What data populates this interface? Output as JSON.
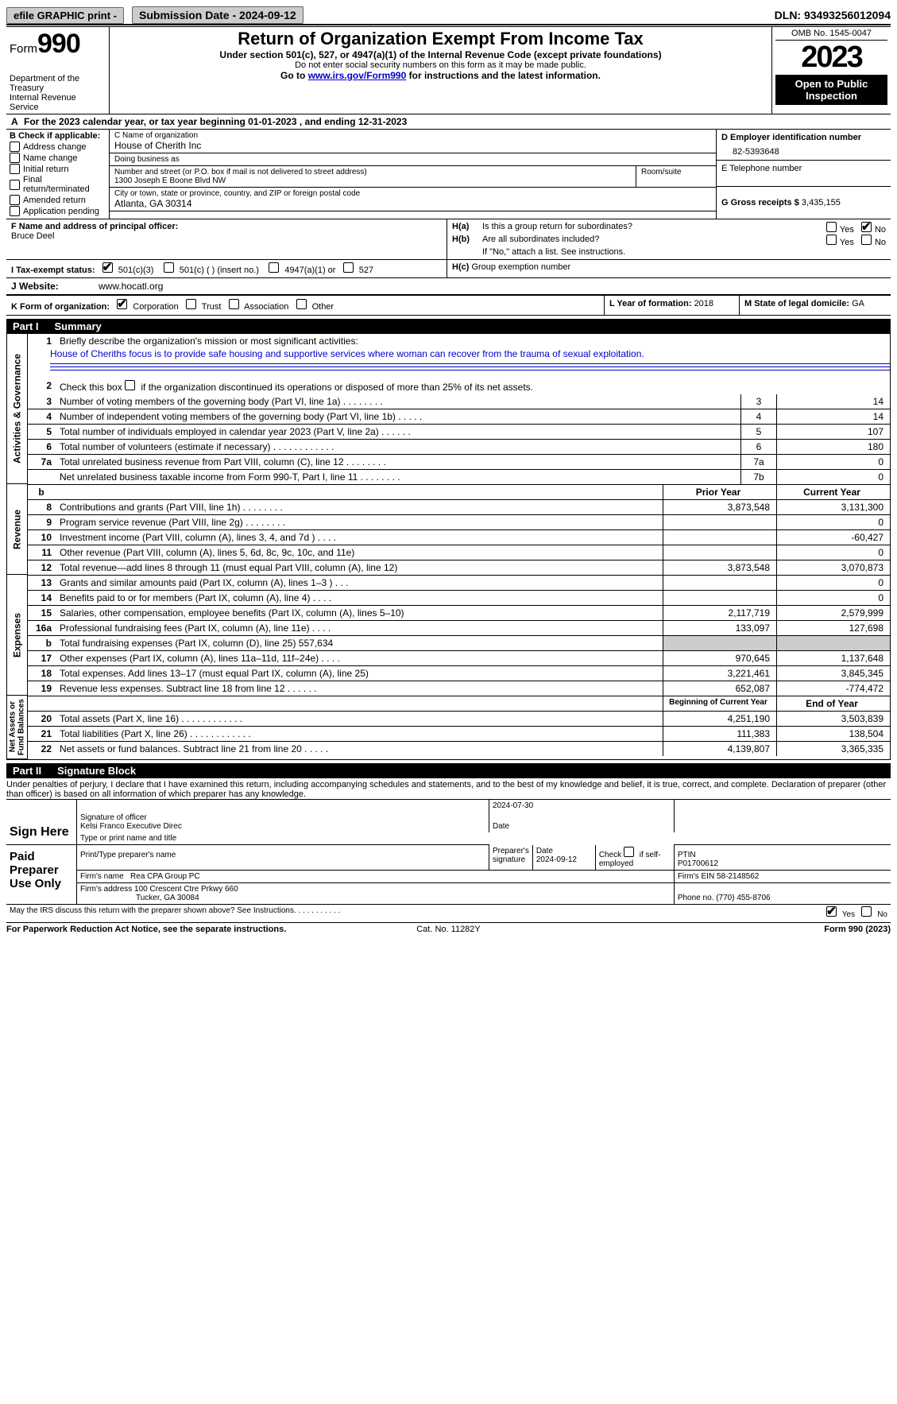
{
  "topbar": {
    "efile": "efile GRAPHIC print -",
    "submission": "Submission Date - 2024-09-12",
    "dln": "DLN: 93493256012094"
  },
  "header": {
    "form_prefix": "Form",
    "form_num": "990",
    "dept": "Department of the Treasury\nInternal Revenue Service",
    "title": "Return of Organization Exempt From Income Tax",
    "sub1": "Under section 501(c), 527, or 4947(a)(1) of the Internal Revenue Code (except private foundations)",
    "sub2": "Do not enter social security numbers on this form as it may be made public.",
    "sub3a": "Go to ",
    "sub3_link": "www.irs.gov/Form990",
    "sub3b": " for instructions and the latest information.",
    "omb": "OMB No. 1545-0047",
    "year": "2023",
    "openpub": "Open to Public Inspection"
  },
  "period": {
    "text_a": "For the 2023 calendar year, or tax year beginning ",
    "begin": "01-01-2023",
    "text_b": " , and ending ",
    "end": "12-31-2023",
    "prefix": "A"
  },
  "boxB": {
    "title": "B Check if applicable:",
    "items": [
      "Address change",
      "Name change",
      "Initial return",
      "Final return/terminated",
      "Amended return",
      "Application pending"
    ]
  },
  "boxC": {
    "name_label": "C Name of organization",
    "name": "House of Cherith Inc",
    "dba_label": "Doing business as",
    "dba": "",
    "addr_label": "Number and street (or P.O. box if mail is not delivered to street address)",
    "addr": "1300 Joseph E Boone Blvd NW",
    "room_label": "Room/suite",
    "city_label": "City or town, state or province, country, and ZIP or foreign postal code",
    "city": "Atlanta, GA   30314"
  },
  "boxDEFG": {
    "d_label": "D Employer identification number",
    "d_val": "82-5393648",
    "e_label": "E Telephone number",
    "e_val": "",
    "g_label": "G Gross receipts $ ",
    "g_val": "3,435,155"
  },
  "boxF": {
    "label": "F  Name and address of principal officer:",
    "val": "Bruce Deel"
  },
  "boxH": {
    "a_label": "H(a)",
    "a_text": "Is this a group return for subordinates?",
    "a_no": true,
    "b_label": "H(b)",
    "b_text": "Are all subordinates included?",
    "b_note": "If \"No,\" attach a list. See instructions.",
    "c_label": "H(c)",
    "c_text": "Group exemption number "
  },
  "boxI": {
    "label": "I   Tax-exempt status:",
    "c3": "501(c)(3)",
    "c": "501(c) (  ) (insert no.)",
    "a1": "4947(a)(1) or",
    "s527": "527"
  },
  "boxJ": {
    "label": "J   Website: ",
    "val": "www.hocatl.org"
  },
  "boxK": {
    "label": "K Form of organization:",
    "opts": [
      "Corporation",
      "Trust",
      "Association",
      "Other"
    ]
  },
  "boxL": {
    "label": "L Year of formation: ",
    "val": "2018"
  },
  "boxM": {
    "label": "M State of legal domicile: ",
    "val": "GA"
  },
  "part1": {
    "bar": "Part I",
    "title": "Summary",
    "line1_label": "Briefly describe the organization's mission or most significant activities:",
    "line1_val": "House of Cheriths focus is to provide safe housing and supportive services where woman can recover from the trauma of sexual exploitation.",
    "line2": "Check this box      if the organization discontinued its operations or disposed of more than 25% of its net assets.",
    "sidelabels": {
      "ag": "Activities & Governance",
      "rev": "Revenue",
      "exp": "Expenses",
      "net": "Net Assets or\nFund Balances"
    },
    "rows_gov": [
      {
        "n": "3",
        "d": "Number of voting members of the governing body (Part VI, line 1a)   .    .    .    .    .    .    .    .",
        "box": "3",
        "v": "14"
      },
      {
        "n": "4",
        "d": "Number of independent voting members of the governing body (Part VI, line 1b)   .    .    .    .    .",
        "box": "4",
        "v": "14"
      },
      {
        "n": "5",
        "d": "Total number of individuals employed in calendar year 2023 (Part V, line 2a)   .    .    .    .    .    .",
        "box": "5",
        "v": "107"
      },
      {
        "n": "6",
        "d": "Total number of volunteers (estimate if necessary)   .    .    .    .    .    .    .    .    .    .    .    .",
        "box": "6",
        "v": "180"
      },
      {
        "n": "7a",
        "d": "Total unrelated business revenue from Part VIII, column (C), line 12   .    .    .    .    .    .    .    .",
        "box": "7a",
        "v": "0"
      },
      {
        "n": "",
        "d": "Net unrelated business taxable income from Form 990-T, Part I, line 11   .    .    .    .    .    .    .    .",
        "box": "7b",
        "v": "0"
      }
    ],
    "colhdr_b": "b",
    "colhdr_prior": "Prior Year",
    "colhdr_curr": "Current Year",
    "rows_rev": [
      {
        "n": "8",
        "d": "Contributions and grants (Part VIII, line 1h)   .    .    .    .    .    .    .    .",
        "p": "3,873,548",
        "c": "3,131,300"
      },
      {
        "n": "9",
        "d": "Program service revenue (Part VIII, line 2g)   .    .    .    .    .    .    .    .",
        "p": "",
        "c": "0"
      },
      {
        "n": "10",
        "d": "Investment income (Part VIII, column (A), lines 3, 4, and 7d )   .    .    .    .",
        "p": "",
        "c": "-60,427"
      },
      {
        "n": "11",
        "d": "Other revenue (Part VIII, column (A), lines 5, 6d, 8c, 9c, 10c, and 11e)",
        "p": "",
        "c": "0"
      },
      {
        "n": "12",
        "d": "Total revenue—add lines 8 through 11 (must equal Part VIII, column (A), line 12)",
        "p": "3,873,548",
        "c": "3,070,873"
      }
    ],
    "rows_exp": [
      {
        "n": "13",
        "d": "Grants and similar amounts paid (Part IX, column (A), lines 1–3 )   .    .    .",
        "p": "",
        "c": "0"
      },
      {
        "n": "14",
        "d": "Benefits paid to or for members (Part IX, column (A), line 4)   .    .    .    .",
        "p": "",
        "c": "0"
      },
      {
        "n": "15",
        "d": "Salaries, other compensation, employee benefits (Part IX, column (A), lines 5–10)",
        "p": "2,117,719",
        "c": "2,579,999"
      },
      {
        "n": "16a",
        "d": "Professional fundraising fees (Part IX, column (A), line 11e)   .    .    .    .",
        "p": "133,097",
        "c": "127,698"
      },
      {
        "n": "b",
        "d": "Total fundraising expenses (Part IX, column (D), line 25) 557,634",
        "p": "SHADE",
        "c": "SHADE"
      },
      {
        "n": "17",
        "d": "Other expenses (Part IX, column (A), lines 11a–11d, 11f–24e)   .    .    .    .",
        "p": "970,645",
        "c": "1,137,648"
      },
      {
        "n": "18",
        "d": "Total expenses. Add lines 13–17 (must equal Part IX, column (A), line 25)",
        "p": "3,221,461",
        "c": "3,845,345"
      },
      {
        "n": "19",
        "d": "Revenue less expenses. Subtract line 18 from line 12   .    .    .    .    .    .",
        "p": "652,087",
        "c": "-774,472"
      }
    ],
    "colhdr_beg": "Beginning of Current Year",
    "colhdr_end": "End of Year",
    "rows_net": [
      {
        "n": "20",
        "d": "Total assets (Part X, line 16)   .    .    .    .    .    .    .    .    .    .    .    .",
        "p": "4,251,190",
        "c": "3,503,839"
      },
      {
        "n": "21",
        "d": "Total liabilities (Part X, line 26)   .    .    .    .    .    .    .    .    .    .    .    .",
        "p": "111,383",
        "c": "138,504"
      },
      {
        "n": "22",
        "d": "Net assets or fund balances. Subtract line 21 from line 20   .    .    .    .    .",
        "p": "4,139,807",
        "c": "3,365,335"
      }
    ]
  },
  "part2": {
    "bar": "Part II",
    "title": "Signature Block",
    "decl": "Under penalties of perjury, I declare that I have examined this return, including accompanying schedules and statements, and to the best of my knowledge and belief, it is true, correct, and complete. Declaration of preparer (other than officer) is based on all information of which preparer has any knowledge.",
    "sign_here": "Sign Here",
    "sig_officer_lab": "Signature of officer",
    "sig_officer_name": "Kelsi Franco  Executive Direc",
    "sig_type_lab": "Type or print name and title",
    "date_lab": "Date",
    "date_val": "2024-07-30",
    "paid": "Paid Preparer Use Only",
    "prep_name_lab": "Print/Type preparer's name",
    "prep_sig_lab": "Preparer's signature",
    "prep_date": "2024-09-12",
    "check_self": "Check        if self-employed",
    "ptin_lab": "PTIN",
    "ptin": "P01700612",
    "firm_name_lab": "Firm's name   ",
    "firm_name": "Rea CPA Group PC",
    "firm_ein_lab": "Firm's EIN  ",
    "firm_ein": "58-2148562",
    "firm_addr_lab": "Firm's address ",
    "firm_addr1": "100 Crescent Ctre Prkwy 660",
    "firm_addr2": "Tucker, GA   30084",
    "phone_lab": "Phone no. ",
    "phone": "(770) 455-8706",
    "discuss": "May the IRS discuss this return with the preparer shown above? See Instructions.    .     .    .    .     .     .     .     .     .     .",
    "discuss_yes": true
  },
  "footer": {
    "left": "For Paperwork Reduction Act Notice, see the separate instructions.",
    "mid": "Cat. No. 11282Y",
    "right_a": "Form ",
    "right_b": "990",
    "right_c": " (2023)"
  },
  "labels": {
    "yes": "Yes",
    "no": "No"
  }
}
